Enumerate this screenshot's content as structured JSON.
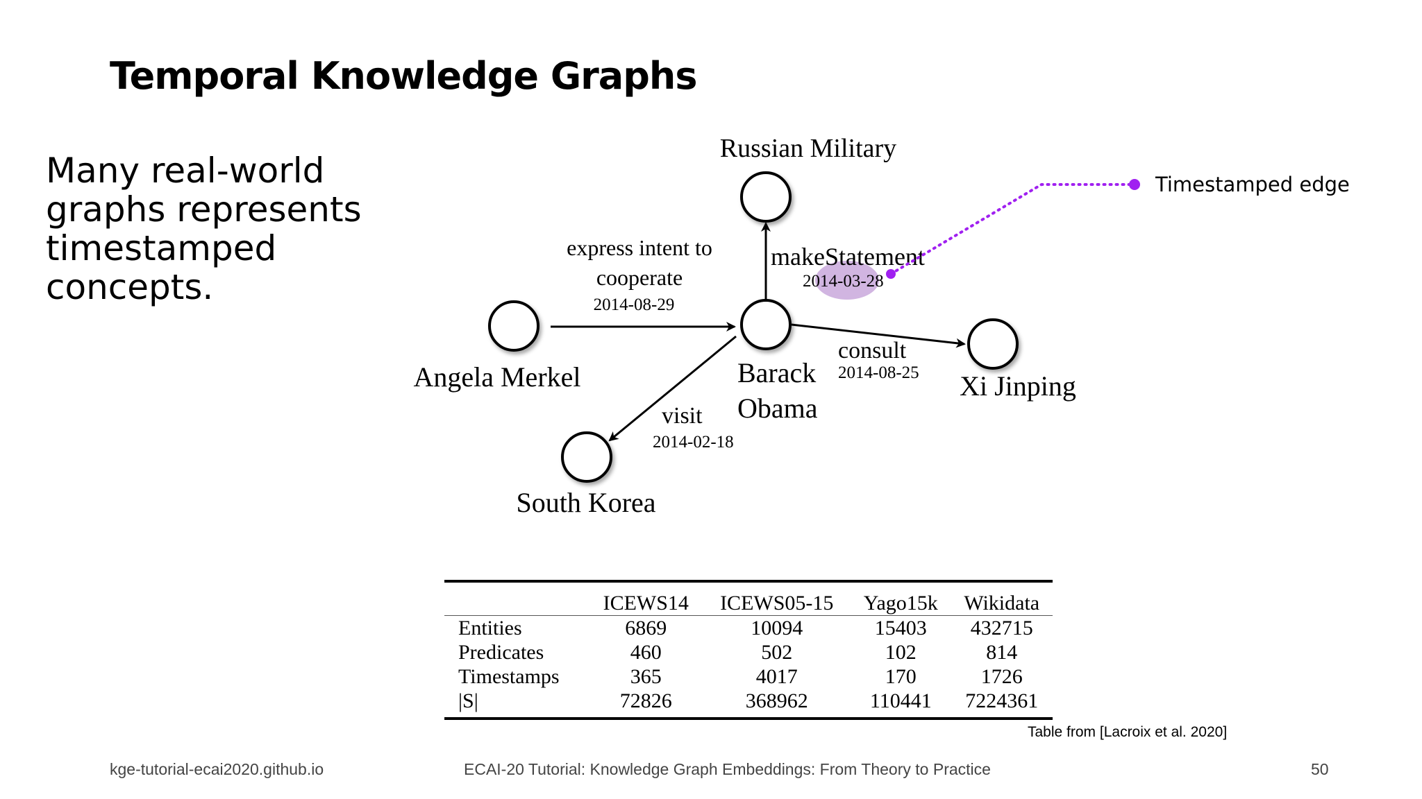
{
  "slide": {
    "title": "Temporal Knowledge Graphs",
    "body_lines": [
      "Many real-world",
      "graphs represents",
      "timestamped",
      "concepts."
    ]
  },
  "diagram": {
    "nodes": {
      "russian_military": "Russian Military",
      "angela_merkel": "Angela Merkel",
      "barack_obama_line1": "Barack",
      "barack_obama_line2": "Obama",
      "xi_jinping": "Xi Jinping",
      "south_korea": "South Korea"
    },
    "edges": {
      "cooperate_label_line1": "express intent to",
      "cooperate_label_line2": "cooperate",
      "cooperate_date": "2014-08-29",
      "statement_label": "makeStatement",
      "statement_date": "2014-03-28",
      "consult_label": "consult",
      "consult_date": "2014-08-25",
      "visit_label": "visit",
      "visit_date": "2014-02-18"
    },
    "callout": {
      "label": "Timestamped edge",
      "color": "#a020f0",
      "highlight_color": "#c9a8dc"
    }
  },
  "table": {
    "columns": [
      "",
      "ICEWS14",
      "ICEWS05-15",
      "Yago15k",
      "Wikidata"
    ],
    "rows": [
      {
        "label": "Entities",
        "values": [
          "6869",
          "10094",
          "15403",
          "432715"
        ]
      },
      {
        "label": "Predicates",
        "values": [
          "460",
          "502",
          "102",
          "814"
        ]
      },
      {
        "label": "Timestamps",
        "values": [
          "365",
          "4017",
          "170",
          "1726"
        ]
      },
      {
        "label": "|S|",
        "values": [
          "72826",
          "368962",
          "110441",
          "7224361"
        ]
      }
    ],
    "credit": "Table from [Lacroix et al. 2020]"
  },
  "footer": {
    "left": "kge-tutorial-ecai2020.github.io",
    "center": "ECAI-20 Tutorial: Knowledge Graph Embeddings: From Theory to Practice",
    "page_number": "50"
  }
}
